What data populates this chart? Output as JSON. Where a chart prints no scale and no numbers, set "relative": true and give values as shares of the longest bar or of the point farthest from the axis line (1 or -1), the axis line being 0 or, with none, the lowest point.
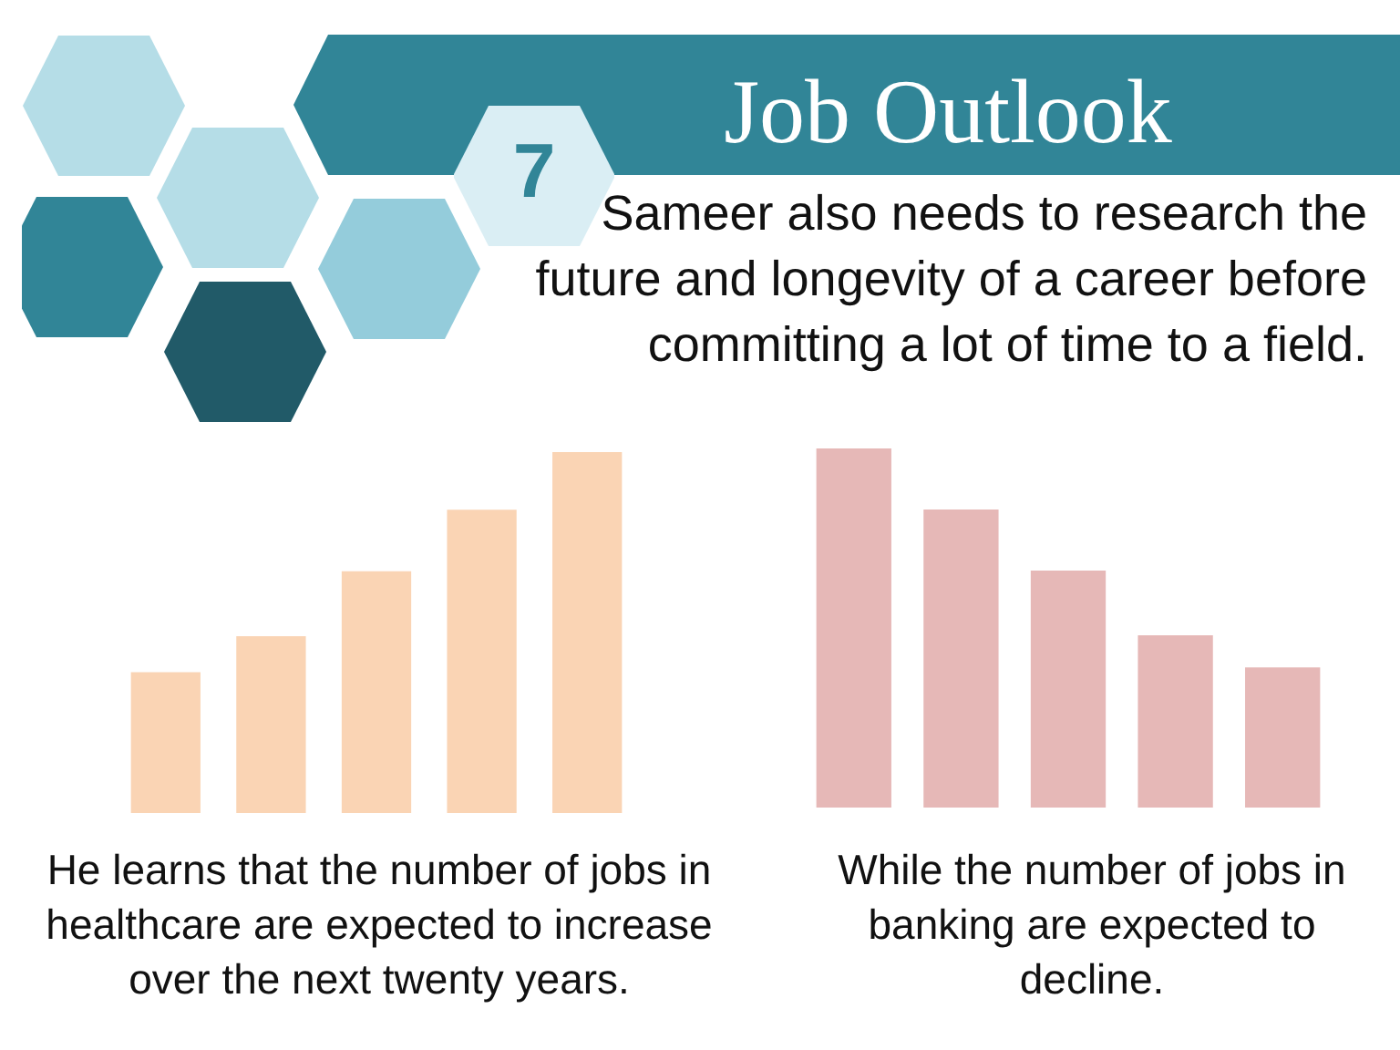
{
  "chart_data": [
    {
      "type": "other",
      "title": "Job Outlook",
      "annotations": [
        "7",
        "Sameer also needs to research the future and longevity of a career before committing a lot of time to a field."
      ]
    },
    {
      "type": "bar",
      "categories": [
        null,
        null,
        null,
        null,
        null
      ],
      "values": [
        0.39,
        0.49,
        0.67,
        0.84,
        1
      ],
      "color": "#fad4b4",
      "relative": true,
      "annotations": [
        "He learns that the number of jobs in healthcare are expected to increase over the next twenty years."
      ]
    },
    {
      "type": "bar",
      "categories": [
        null,
        null,
        null,
        null,
        null
      ],
      "values": [
        1,
        0.83,
        0.66,
        0.48,
        0.39
      ],
      "color": "#e6b8b7",
      "relative": true,
      "annotations": [
        "While the number of jobs in banking are expected to decline."
      ]
    }
  ]
}
